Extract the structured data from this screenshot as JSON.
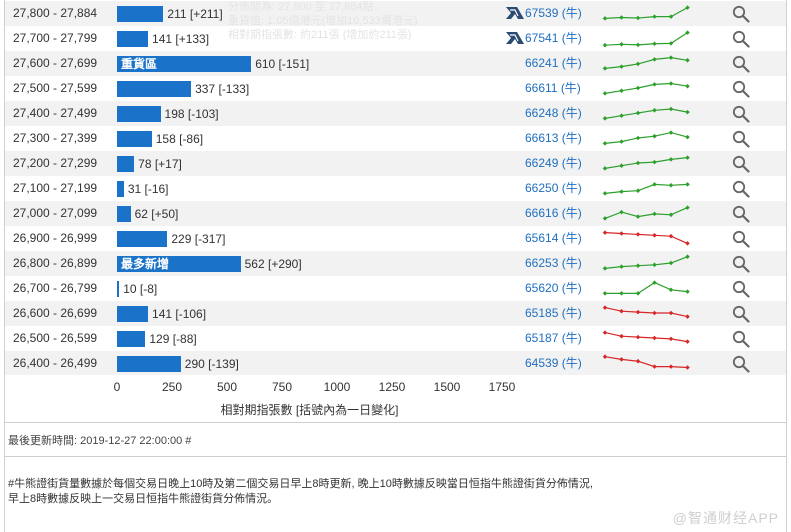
{
  "overlay": {
    "lines": [
      "分佈間為: 27,800 至 27,884點",
      "重貨值: 1.05億港元(增加10,533萬港元)",
      "相對期指張數: 約211張 (增加約211張)"
    ]
  },
  "colors": {
    "bar": "#1a73c9",
    "code": "#1f6fc0",
    "up": "#2ca02c",
    "down": "#d62728"
  },
  "chart_data": {
    "type": "bar",
    "orientation": "horizontal",
    "xlabel": "相對期指張數 [括號內為一日變化]",
    "xlim": [
      0,
      1750
    ],
    "xticks": [
      "0",
      "250",
      "500",
      "750",
      "1000",
      "1250",
      "1500",
      "1750"
    ],
    "categories": [
      "27,800 - 27,884",
      "27,700 - 27,799",
      "27,600 - 27,699",
      "27,500 - 27,599",
      "27,400 - 27,499",
      "27,300 - 27,399",
      "27,200 - 27,299",
      "27,100 - 27,199",
      "27,000 - 27,099",
      "26,900 - 26,999",
      "26,800 - 26,899",
      "26,700 - 26,799",
      "26,600 - 26,699",
      "26,500 - 26,599",
      "26,400 - 26,499"
    ],
    "values": [
      211,
      141,
      610,
      337,
      198,
      158,
      78,
      31,
      62,
      229,
      562,
      10,
      141,
      129,
      290
    ],
    "value_labels": [
      "211 [+211]",
      "141 [+133]",
      "610 [-151]",
      "337 [-133]",
      "198 [-103]",
      "158 [-86]",
      "78 [+17]",
      "31 [-16]",
      "62 [+50]",
      "229 [-317]",
      "562 [+290]",
      "10 [-8]",
      "141 [-106]",
      "129 [-88]",
      "290 [-139]"
    ],
    "bar_tags": [
      "",
      "",
      "重貨區",
      "",
      "",
      "",
      "",
      "",
      "",
      "",
      "最多新增",
      "",
      "",
      "",
      ""
    ]
  },
  "rows": [
    {
      "code": "67539 (牛)",
      "issuer_icon": true,
      "trend": "up",
      "spark": [
        0.2,
        0.25,
        0.22,
        0.3,
        0.3,
        0.8
      ]
    },
    {
      "code": "67541 (牛)",
      "issuer_icon": true,
      "trend": "up",
      "spark": [
        0.1,
        0.15,
        0.12,
        0.18,
        0.2,
        0.8
      ]
    },
    {
      "code": "66241 (牛)",
      "issuer_icon": false,
      "trend": "up",
      "spark": [
        0.2,
        0.3,
        0.45,
        0.7,
        0.8,
        0.65
      ]
    },
    {
      "code": "66611 (牛)",
      "issuer_icon": false,
      "trend": "up",
      "spark": [
        0.2,
        0.35,
        0.5,
        0.7,
        0.75,
        0.6
      ]
    },
    {
      "code": "66248 (牛)",
      "issuer_icon": false,
      "trend": "up",
      "spark": [
        0.2,
        0.35,
        0.5,
        0.65,
        0.72,
        0.55
      ]
    },
    {
      "code": "66613 (牛)",
      "issuer_icon": false,
      "trend": "up",
      "spark": [
        0.2,
        0.3,
        0.5,
        0.6,
        0.8,
        0.55
      ]
    },
    {
      "code": "66249 (牛)",
      "issuer_icon": false,
      "trend": "up",
      "spark": [
        0.2,
        0.35,
        0.5,
        0.55,
        0.7,
        0.8
      ]
    },
    {
      "code": "66250 (牛)",
      "issuer_icon": false,
      "trend": "up",
      "spark": [
        0.2,
        0.3,
        0.35,
        0.7,
        0.65,
        0.7
      ]
    },
    {
      "code": "66616 (牛)",
      "issuer_icon": false,
      "trend": "up",
      "spark": [
        0.2,
        0.55,
        0.3,
        0.45,
        0.4,
        0.8
      ]
    },
    {
      "code": "65614 (牛)",
      "issuer_icon": false,
      "trend": "down",
      "spark": [
        0.8,
        0.75,
        0.7,
        0.65,
        0.6,
        0.2
      ]
    },
    {
      "code": "66253 (牛)",
      "issuer_icon": false,
      "trend": "up",
      "spark": [
        0.2,
        0.3,
        0.35,
        0.4,
        0.5,
        0.85
      ]
    },
    {
      "code": "65620 (牛)",
      "issuer_icon": false,
      "trend": "up",
      "spark": [
        0.2,
        0.2,
        0.2,
        0.8,
        0.4,
        0.3
      ]
    },
    {
      "code": "65185 (牛)",
      "issuer_icon": false,
      "trend": "down",
      "spark": [
        0.8,
        0.6,
        0.55,
        0.5,
        0.5,
        0.3
      ]
    },
    {
      "code": "65187 (牛)",
      "issuer_icon": false,
      "trend": "down",
      "spark": [
        0.8,
        0.6,
        0.55,
        0.5,
        0.45,
        0.3
      ]
    },
    {
      "code": "64539 (牛)",
      "issuer_icon": false,
      "trend": "down",
      "spark": [
        0.85,
        0.7,
        0.6,
        0.3,
        0.3,
        0.25
      ]
    }
  ],
  "footer": {
    "last_updated": "最後更新時間: 2019-12-27 22:00:00 #",
    "note_lines": [
      "#牛熊證街貨量數據於每個交易日晚上10時及第二個交易日早上8時更新, 晚上10時數據反映當日恒指牛熊證街貨分佈情況,",
      "早上8時數據反映上一交易日恒指牛熊證街貨分佈情況。"
    ],
    "watermark": "@智通财经APP"
  }
}
